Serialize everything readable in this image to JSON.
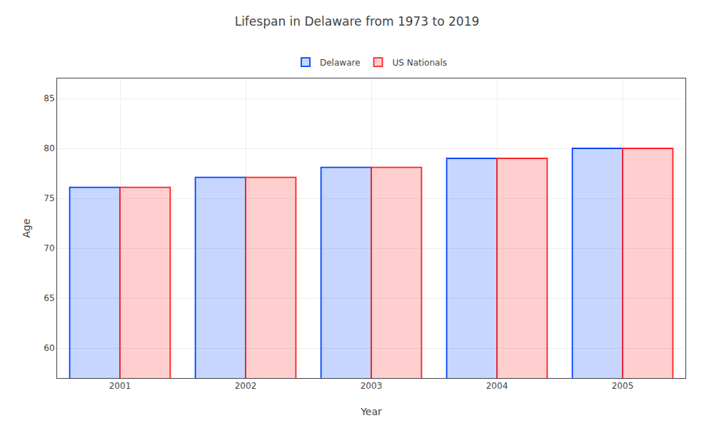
{
  "chart_data": {
    "type": "bar",
    "title": "Lifespan in Delaware from 1973 to 2019",
    "x_label": "Year",
    "y_label": "Age",
    "categories": [
      "2001",
      "2002",
      "2003",
      "2004",
      "2005"
    ],
    "series": [
      {
        "name": "Delaware",
        "color": "#0044ff",
        "values": [
          76.1,
          77.1,
          78.1,
          79.0,
          80.0
        ]
      },
      {
        "name": "US Nationals",
        "color": "#ff2222",
        "values": [
          76.1,
          77.1,
          78.1,
          79.0,
          80.0
        ]
      }
    ],
    "ylim": [
      57,
      87
    ],
    "yticks": [
      60,
      65,
      70,
      75,
      80,
      85
    ],
    "grid": true,
    "legend": "top"
  }
}
